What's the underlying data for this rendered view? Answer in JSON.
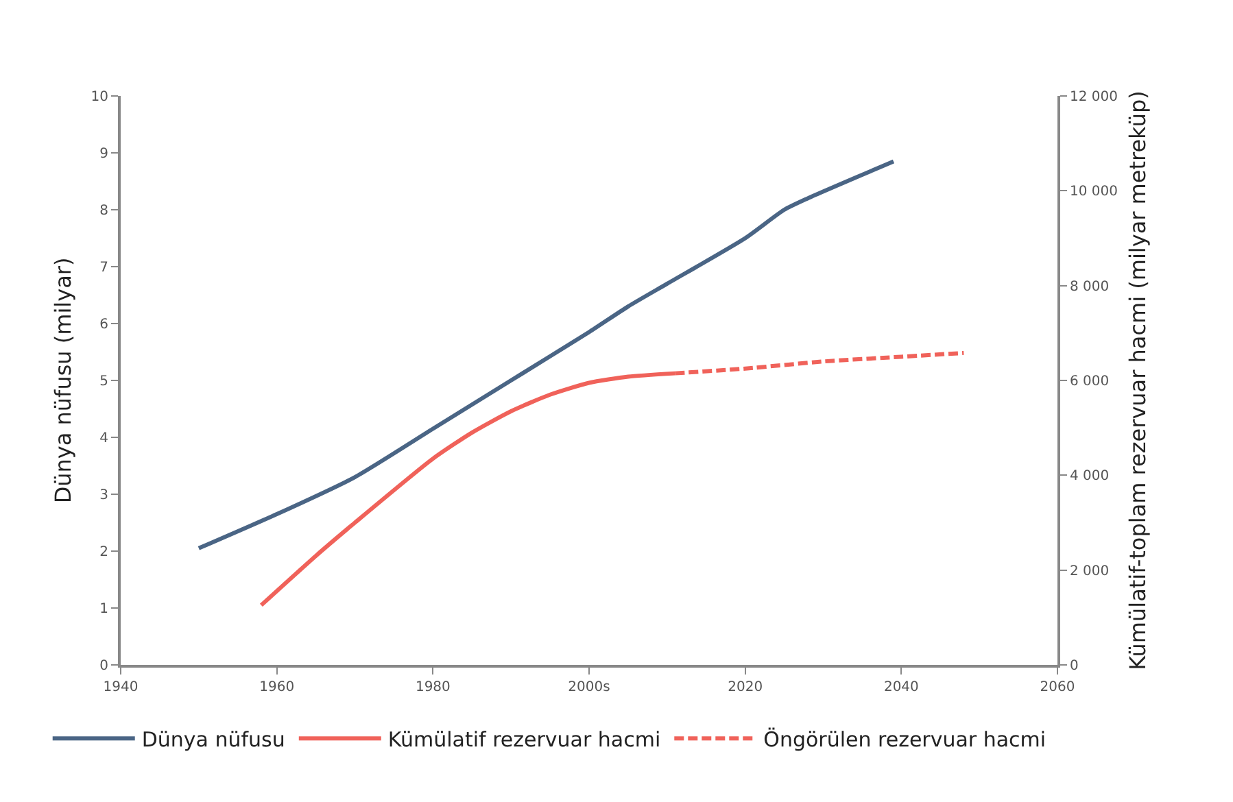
{
  "chart_data": {
    "type": "line",
    "ylabel": "Dünya nüfusu (milyar)",
    "y2label": "Kümülatif-toplam rezervuar hacmi (milyar metreküp)",
    "xlim": [
      1940,
      2060
    ],
    "xticks": [
      1940,
      1960,
      1980,
      {
        "value": 2000,
        "label": "2000s"
      },
      2020,
      2040,
      2060
    ],
    "ylim": [
      0,
      10
    ],
    "yticks": [
      0,
      1,
      2,
      3,
      4,
      5,
      6,
      7,
      8,
      9,
      10
    ],
    "y2lim": [
      0,
      12000
    ],
    "y2ticks": [
      0,
      {
        "value": 2000,
        "label": "2 000"
      },
      {
        "value": 4000,
        "label": "4 000"
      },
      {
        "value": 6000,
        "label": "6 000"
      },
      {
        "value": 8000,
        "label": "8 000"
      },
      {
        "value": 10000,
        "label": "10 000"
      },
      {
        "value": 12000,
        "label": "12 000"
      }
    ],
    "grid": false,
    "legend": "bottom",
    "marker": "none",
    "series": [
      {
        "name": "Dünya nüfusu",
        "color": "#4a6585",
        "line_style": "solid",
        "x": [
          1950,
          1960,
          1970,
          1980,
          1990,
          2000,
          2005,
          2010,
          2020,
          2025,
          2028,
          2039
        ],
        "values": [
          2.05,
          2.65,
          3.3,
          4.15,
          5.0,
          5.85,
          6.3,
          6.7,
          7.5,
          8.0,
          8.2,
          8.85
        ]
      },
      {
        "name": "Kümülatif rezervuar hacmi",
        "color": "#f0625a",
        "line_style": "solid",
        "axis": "y2",
        "x": [
          1958,
          1965,
          1970,
          1980,
          1985,
          1990,
          1995,
          2000,
          2005,
          2011
        ],
        "values": [
          1260,
          2300,
          3000,
          4350,
          4900,
          5350,
          5700,
          5950,
          6080,
          6150
        ]
      },
      {
        "name": "Öngörülen rezervuar hacmi",
        "color": "#f0625a",
        "line_style": "dashed",
        "axis": "y2",
        "x": [
          2011,
          2020,
          2030,
          2040,
          2048
        ],
        "values": [
          6150,
          6250,
          6400,
          6500,
          6580
        ]
      }
    ]
  }
}
